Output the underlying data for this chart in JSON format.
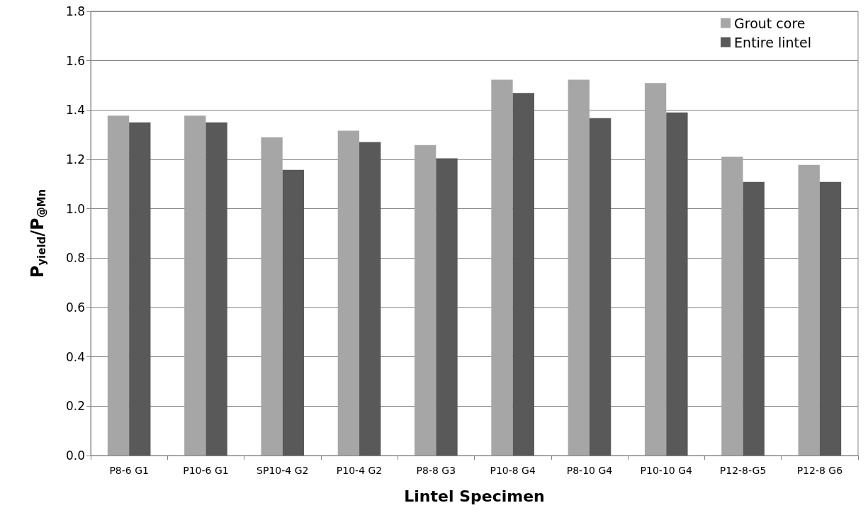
{
  "chart_data": {
    "type": "bar",
    "categories": [
      "P8-6 G1",
      "P10-6 G1",
      "SP10-4 G2",
      "P10-4 G2",
      "P8-8 G3",
      "P10-8 G4",
      "P8-10 G4",
      "P10-10 G4",
      "P12-8-G5",
      "P12-8 G6"
    ],
    "series": [
      {
        "name": "Grout core",
        "color": "#a6a6a6",
        "values": [
          1.377,
          1.377,
          1.29,
          1.316,
          1.258,
          1.523,
          1.523,
          1.509,
          1.211,
          1.178
        ]
      },
      {
        "name": "Entire lintel",
        "color": "#595959",
        "values": [
          1.35,
          1.35,
          1.158,
          1.27,
          1.204,
          1.469,
          1.367,
          1.39,
          1.109,
          1.109
        ]
      }
    ],
    "xlabel": "Lintel Specimen",
    "ylabel": "P$_{yield}$/P$_{@Mn}$",
    "ylim": [
      0,
      1.8
    ],
    "yticks": [
      {
        "value": 0,
        "label": "0.0"
      },
      0.2,
      0.4,
      0.6,
      0.8,
      {
        "value": 1,
        "label": "1.0"
      },
      1.2,
      1.4,
      1.6,
      1.8
    ],
    "grid": "y",
    "legend": "top right"
  }
}
